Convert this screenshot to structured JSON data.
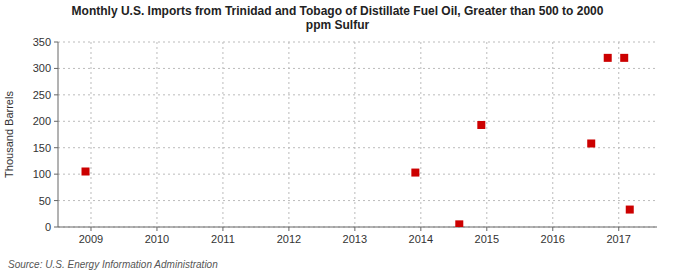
{
  "chart_data": {
    "type": "scatter",
    "title": "Monthly U.S. Imports from Trinidad and Tobago of Distillate Fuel Oil, Greater than 500 to 2000\nppm Sulfur",
    "ylabel": "Thousand Barrels",
    "source": "Source: U.S. Energy Information Administration",
    "x": [
      2008.917,
      2013.917,
      2014.583,
      2014.917,
      2016.583,
      2016.833,
      2017.083,
      2017.167
    ],
    "values": [
      105,
      103,
      5,
      193,
      158,
      320,
      320,
      33
    ],
    "color": "#cc0000",
    "marker": "square",
    "xlim": [
      2008.5,
      2017.58
    ],
    "ylim": [
      0,
      350
    ],
    "xticks": [
      2009,
      2010,
      2011,
      2012,
      2013,
      2014,
      2015,
      2016,
      2017
    ],
    "yticks": [
      0,
      50,
      100,
      150,
      200,
      250,
      300,
      350
    ],
    "grid": true
  }
}
